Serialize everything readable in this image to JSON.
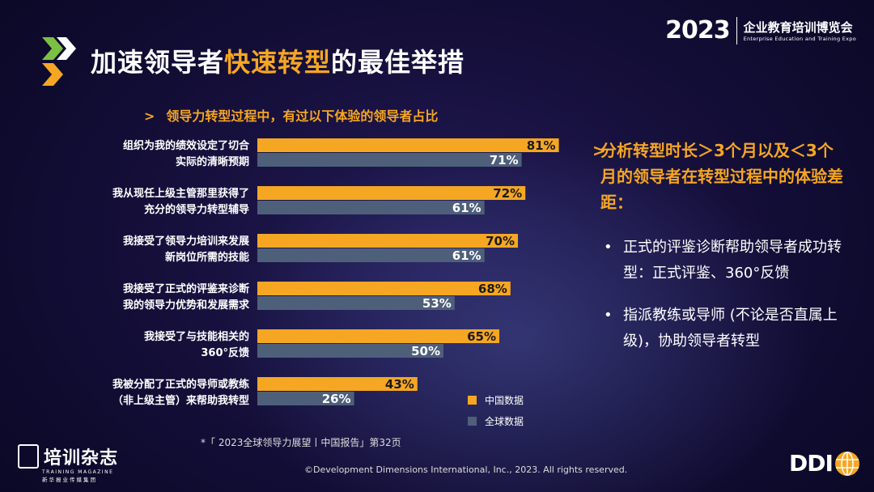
{
  "header": {
    "title_part1": "加速领导者",
    "title_highlight": "快速转型",
    "title_part2": "的最佳举措",
    "expo_year": "2023",
    "expo_name_cn": "企业教育培训博览会",
    "expo_name_en": "Enterprise Education and Training Expo"
  },
  "subtitle": {
    "chevron": ">",
    "text": "领导力转型过程中，有过以下体验的领导者占比"
  },
  "chart_data": {
    "type": "bar",
    "orientation": "horizontal",
    "categories": [
      [
        "组织为我的绩效设定了切合",
        "实际的清晰预期"
      ],
      [
        "我从现任上级主管那里获得了",
        "充分的领导力转型辅导"
      ],
      [
        "我接受了领导力培训来发展",
        "新岗位所需的技能"
      ],
      [
        "我接受了正式的评鉴来诊断",
        "我的领导力优势和发展需求"
      ],
      [
        "我接受了与技能相关的",
        "360°反馈"
      ],
      [
        "我被分配了正式的导师或教练",
        "（非上级主管）来帮助我转型"
      ]
    ],
    "series": [
      {
        "name": "中国数据",
        "color": "#f5a623",
        "values": [
          81,
          72,
          70,
          68,
          65,
          43
        ],
        "labels": [
          "81%",
          "72%",
          "70%",
          "68%",
          "65%",
          "43%"
        ]
      },
      {
        "name": "全球数据",
        "color": "#4e5f7a",
        "values": [
          71,
          61,
          61,
          53,
          50,
          26
        ],
        "labels": [
          "71%",
          "61%",
          "61%",
          "53%",
          "50%",
          "26%"
        ]
      }
    ],
    "xlim": [
      0,
      100
    ],
    "grid": false,
    "legend_position": "bottom-right"
  },
  "legend": {
    "items": [
      {
        "label": "中国数据",
        "color": "#f5a623"
      },
      {
        "label": "全球数据",
        "color": "#4e5f7a"
      }
    ]
  },
  "footnote": "*「 2023全球领导力展望丨中国报告」第32页",
  "copyright": "©Development Dimensions International, Inc., 2023. All rights reserved.",
  "right_panel": {
    "chevron": ">",
    "heading": "分析转型时长＞3个月以及＜3个月的领导者在转型过程中的体验差距：",
    "bullets": [
      "正式的评鉴诊断帮助领导者成功转型：正式评鉴、360°反馈",
      "指派教练或导师 (不论是否直属上级)，协助领导者转型"
    ],
    "bullet_symbol": "•"
  },
  "footer_logo": {
    "cn": "培训杂志",
    "en": "TRAINING MAGAZINE",
    "sub": "新华报业传媒集团"
  },
  "ddi_logo": "DDI"
}
